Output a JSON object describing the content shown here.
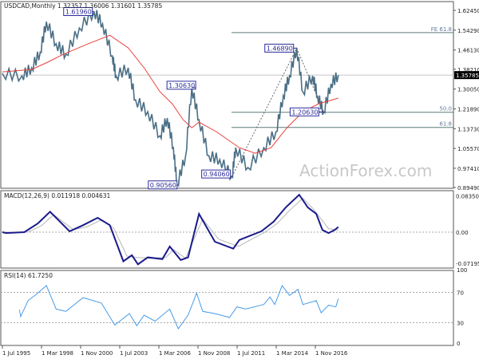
{
  "chart_data": [
    {
      "type": "line",
      "title": "USDCAD,Monthly",
      "ohlc_readout": "1.32357 1.36006 1.31601 1.35785",
      "current_price": "1.35785",
      "y_ticks": [
        "1.62450",
        "1.54290",
        "1.46130",
        "1.38210",
        "1.30050",
        "1.21890",
        "1.13730",
        "1.05570",
        "0.97410",
        "0.89490"
      ],
      "ylim": [
        0.8949,
        1.6245
      ],
      "x_ticks": [
        "1 Jul 1995",
        "1 Mar 1998",
        "1 Nov 2000",
        "1 Jul 2003",
        "1 Mar 2006",
        "1 Nov 2008",
        "1 Jul 2011",
        "1 Mar 2014",
        "1 Nov 2016"
      ],
      "colors": {
        "price": "#4a6f86",
        "ma": "#e8413c",
        "levels": "#5f7a7a",
        "label": "#2b2b9a"
      },
      "price": [
        [
          "1995-07",
          1.365
        ],
        [
          "1996-11",
          1.355
        ],
        [
          "1997-07",
          1.388
        ],
        [
          "1998-02",
          1.453
        ],
        [
          "1998-07",
          1.578
        ],
        [
          "1999-03",
          1.487
        ],
        [
          "1999-11",
          1.444
        ],
        [
          "2000-10",
          1.552
        ],
        [
          "2001-10",
          1.6196
        ],
        [
          "2002-05",
          1.569
        ],
        [
          "2003-01",
          1.437
        ],
        [
          "2003-04",
          1.355
        ],
        [
          "2004-02",
          1.388
        ],
        [
          "2004-08",
          1.256
        ],
        [
          "2005-06",
          1.207
        ],
        [
          "2006-04",
          1.108
        ],
        [
          "2006-10",
          1.181
        ],
        [
          "2007-03",
          1.059
        ],
        [
          "2007-06",
          0.9056
        ],
        [
          "2008-01",
          1.026
        ],
        [
          "2008-06",
          1.3063
        ],
        [
          "2008-12",
          1.174
        ],
        [
          "2009-08",
          1.026
        ],
        [
          "2010-05",
          1.01
        ],
        [
          "2011-03",
          0.9406
        ],
        [
          "2011-06",
          1.059
        ],
        [
          "2012-04",
          0.977
        ],
        [
          "2013-05",
          1.059
        ],
        [
          "2014-03",
          1.125
        ],
        [
          "2014-09",
          1.273
        ],
        [
          "2015-02",
          1.355
        ],
        [
          "2015-08",
          1.4689
        ],
        [
          "2016-01",
          1.289
        ],
        [
          "2016-09",
          1.355
        ],
        [
          "2017-01",
          1.273
        ],
        [
          "2017-06",
          1.2063
        ],
        [
          "2017-12",
          1.322
        ],
        [
          "2018-06",
          1.35785
        ]
      ],
      "moving_average": [
        [
          "1995-07",
          1.371
        ],
        [
          "1997-07",
          1.381
        ],
        [
          "1998-08",
          1.411
        ],
        [
          "1999-09",
          1.444
        ],
        [
          "2001-05",
          1.486
        ],
        [
          "2002-11",
          1.522
        ],
        [
          "2004-02",
          1.47
        ],
        [
          "2005-03",
          1.388
        ],
        [
          "2006-04",
          1.289
        ],
        [
          "2007-02",
          1.24
        ],
        [
          "2007-11",
          1.174
        ],
        [
          "2008-06",
          1.141
        ],
        [
          "2008-12",
          1.164
        ],
        [
          "2010-02",
          1.125
        ],
        [
          "2011-09",
          1.059
        ],
        [
          "2012-10",
          1.036
        ],
        [
          "2013-11",
          1.059
        ],
        [
          "2014-12",
          1.141
        ],
        [
          "2016-01",
          1.207
        ],
        [
          "2017-02",
          1.24
        ],
        [
          "2018-06",
          1.263
        ]
      ],
      "annotations": [
        {
          "text": "1.61960",
          "date": "2001-10",
          "price": 1.6196
        },
        {
          "text": "0.90560",
          "date": "2007-06",
          "price": 0.9056
        },
        {
          "text": "1.30630",
          "date": "2008-06",
          "price": 1.3063
        },
        {
          "text": "0.94060",
          "date": "2011-03",
          "price": 0.9406
        },
        {
          "text": "1.46890",
          "date": "2015-08",
          "price": 1.4689
        },
        {
          "text": "1.20630",
          "date": "2017-06",
          "price": 1.2063
        }
      ],
      "levels": [
        {
          "text": "FE 61.8",
          "price": 1.5328
        },
        {
          "text": "50.0",
          "price": 1.2048
        },
        {
          "text": "61.8",
          "price": 1.1424
        }
      ],
      "watermark": "ActionForex.com"
    },
    {
      "type": "line",
      "title": "MACD(12,26,9) 0.011918 0.004631",
      "y_ticks": [
        "0.083505",
        "0.00",
        "-0.07195"
      ],
      "ylim": [
        -0.07195,
        0.083505
      ],
      "colors": {
        "macd": "#1a1a8c",
        "signal": "#b8b8b8"
      },
      "macd": [
        [
          "1995-07",
          0.0
        ],
        [
          "1995-10",
          -0.002
        ],
        [
          "1997-01",
          0.0
        ],
        [
          "1997-12",
          0.02
        ],
        [
          "1998-10",
          0.047
        ],
        [
          "2000-02",
          0.002
        ],
        [
          "2001-01",
          0.016
        ],
        [
          "2002-01",
          0.033
        ],
        [
          "2002-11",
          0.016
        ],
        [
          "2003-10",
          -0.067
        ],
        [
          "2004-05",
          -0.053
        ],
        [
          "2004-10",
          -0.074
        ],
        [
          "2005-06",
          -0.058
        ],
        [
          "2006-06",
          -0.062
        ],
        [
          "2006-12",
          -0.033
        ],
        [
          "2007-09",
          -0.064
        ],
        [
          "2008-03",
          -0.058
        ],
        [
          "2008-12",
          0.042
        ],
        [
          "2010-01",
          -0.022
        ],
        [
          "2011-04",
          -0.038
        ],
        [
          "2011-09",
          -0.018
        ],
        [
          "2013-03",
          0.002
        ],
        [
          "2014-01",
          0.024
        ],
        [
          "2014-11",
          0.057
        ],
        [
          "2015-10",
          0.086
        ],
        [
          "2016-05",
          0.057
        ],
        [
          "2016-12",
          0.042
        ],
        [
          "2017-05",
          0.005
        ],
        [
          "2017-10",
          -0.002
        ],
        [
          "2018-03",
          0.005
        ],
        [
          "2018-06",
          0.012
        ]
      ],
      "signal": [
        [
          "1995-07",
          0.0
        ],
        [
          "1997-04",
          0.0
        ],
        [
          "1998-03",
          0.015
        ],
        [
          "1999-01",
          0.04
        ],
        [
          "2000-05",
          0.006
        ],
        [
          "2001-04",
          0.012
        ],
        [
          "2002-04",
          0.028
        ],
        [
          "2003-02",
          0.01
        ],
        [
          "2004-01",
          -0.055
        ],
        [
          "2004-09",
          -0.058
        ],
        [
          "2005-09",
          -0.06
        ],
        [
          "2006-09",
          -0.058
        ],
        [
          "2007-03",
          -0.04
        ],
        [
          "2008-01",
          -0.06
        ],
        [
          "2009-03",
          0.03
        ],
        [
          "2010-04",
          -0.016
        ],
        [
          "2011-08",
          -0.033
        ],
        [
          "2013-06",
          0.0
        ],
        [
          "2014-04",
          0.02
        ],
        [
          "2015-02",
          0.05
        ],
        [
          "2016-01",
          0.078
        ],
        [
          "2016-09",
          0.055
        ],
        [
          "2017-04",
          0.03
        ],
        [
          "2017-10",
          0.008
        ],
        [
          "2018-06",
          0.005
        ]
      ]
    },
    {
      "type": "line",
      "title": "RSI(14) 61.7250",
      "y_ticks": [
        "100",
        "70",
        "30",
        "0"
      ],
      "ylim": [
        0,
        100
      ],
      "color": "#4a9ce8",
      "rsi": [
        [
          "1996-09",
          47
        ],
        [
          "1996-10",
          38
        ],
        [
          "1997-04",
          59
        ],
        [
          "1997-12",
          69
        ],
        [
          "1998-07",
          79
        ],
        [
          "1999-03",
          48
        ],
        [
          "1999-11",
          45
        ],
        [
          "2001-01",
          63
        ],
        [
          "2002-04",
          56
        ],
        [
          "2003-03",
          27
        ],
        [
          "2004-03",
          42
        ],
        [
          "2004-09",
          26
        ],
        [
          "2005-03",
          40
        ],
        [
          "2005-12",
          32
        ],
        [
          "2006-12",
          48
        ],
        [
          "2007-07",
          22
        ],
        [
          "2008-03",
          40
        ],
        [
          "2008-10",
          69
        ],
        [
          "2009-03",
          45
        ],
        [
          "2010-01",
          42
        ],
        [
          "2011-01",
          37
        ],
        [
          "2011-07",
          51
        ],
        [
          "2012-02",
          48
        ],
        [
          "2013-05",
          54
        ],
        [
          "2013-10",
          64
        ],
        [
          "2014-02",
          54
        ],
        [
          "2014-08",
          79
        ],
        [
          "2015-02",
          66
        ],
        [
          "2015-09",
          74
        ],
        [
          "2016-01",
          54
        ],
        [
          "2016-12",
          59
        ],
        [
          "2017-04",
          43
        ],
        [
          "2017-10",
          53
        ],
        [
          "2018-04",
          51
        ],
        [
          "2018-06",
          61.7
        ]
      ]
    }
  ]
}
